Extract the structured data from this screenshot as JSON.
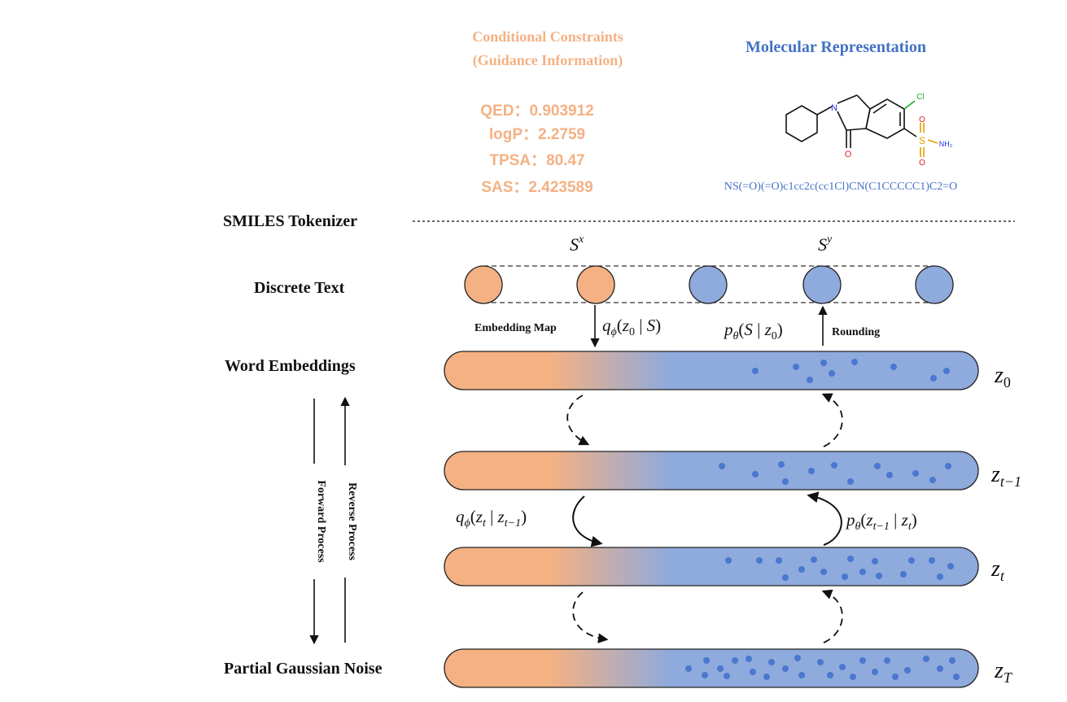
{
  "colors": {
    "orange": "#f4b183",
    "orange_text": "#f4b183",
    "blue": "#8faadc",
    "blue_text": "#4472c4",
    "dot": "#4a78cf",
    "stroke": "#222222"
  },
  "header": {
    "conditional_title_line1": "Conditional Constraints",
    "conditional_title_line2": "(Guidance Information)",
    "molecular_title": "Molecular Representation"
  },
  "constraints": [
    {
      "label": "QED：",
      "value": "0.903912"
    },
    {
      "label": "logP：",
      "value": "2.2759"
    },
    {
      "label": "TPSA：",
      "value": "80.47"
    },
    {
      "label": "SAS：",
      "value": "2.423589"
    }
  ],
  "molecule": {
    "smiles": "NS(=O)(=O)c1cc2c(cc1Cl)CN(C1CCCCC1)C2=O",
    "atoms": {
      "o_carbonyl": "O",
      "n_ring": "N",
      "cl": "Cl",
      "s": "S",
      "o1": "O",
      "o2": "O",
      "nh2": "NH₂"
    }
  },
  "tokenizer_label": "SMILES Tokenizer",
  "tokens": {
    "sx": {
      "base": "S",
      "sup": "x"
    },
    "sy": {
      "base": "S",
      "sup": "y"
    }
  },
  "rows": {
    "discrete_text": "Discrete Text",
    "word_embeddings": "Word Embeddings",
    "partial_gaussian_noise": "Partial Gaussian Noise"
  },
  "process": {
    "forward": "Forward Process",
    "reverse": "Reverse Process"
  },
  "embedding_map": "Embedding Map",
  "rounding": "Rounding",
  "equations": {
    "q_embed": {
      "q": "q",
      "phi": "ϕ",
      "z": "z",
      "zsub": "0",
      "bar": " | ",
      "s": "S"
    },
    "p_round": {
      "p": "p",
      "theta": "θ",
      "s": "S",
      "bar": " | ",
      "z": "z",
      "zsub": "0"
    },
    "q_forward": {
      "q": "q",
      "phi": "ϕ",
      "z1": "z",
      "z1sub": "t",
      "bar": " | ",
      "z2": "z",
      "z2sub": "t−1"
    },
    "p_reverse": {
      "p": "p",
      "theta": "θ",
      "z1": "z",
      "z1sub": "t−1",
      "bar": " | ",
      "z2": "z",
      "z2sub": "t"
    }
  },
  "latents": [
    {
      "base": "z",
      "sub": "0"
    },
    {
      "base": "z",
      "sub": "t−1"
    },
    {
      "base": "z",
      "sub": "t"
    },
    {
      "base": "z",
      "sub": "T"
    }
  ]
}
